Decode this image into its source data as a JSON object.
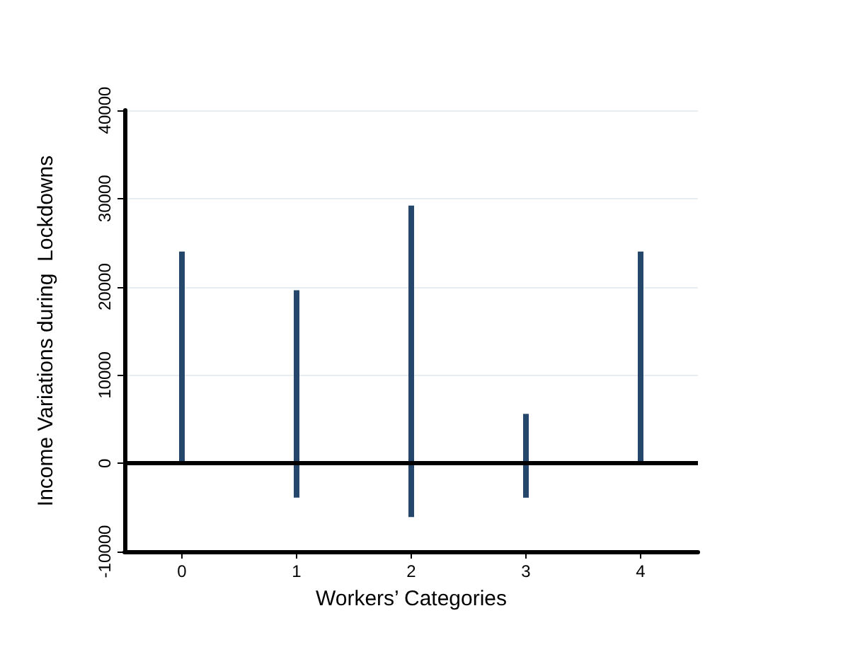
{
  "chart_data": {
    "type": "bar",
    "xlabel": "Workers’ Categories",
    "ylabel": "Income Variations during  Lockdowns",
    "categories": [
      "0",
      "1",
      "2",
      "3",
      "4"
    ],
    "values": [
      24000,
      23500,
      35300,
      9500,
      24000
    ],
    "base": [
      0,
      -3900,
      -6100,
      -3900,
      0
    ],
    "color": "#24476b",
    "ylim": [
      -10000,
      40000
    ],
    "yticks": [
      -10000,
      0,
      10000,
      20000,
      30000,
      40000
    ],
    "ref_lines": [
      {
        "axis": "y",
        "value": 0,
        "color": "#000000"
      }
    ],
    "grid": "y"
  }
}
